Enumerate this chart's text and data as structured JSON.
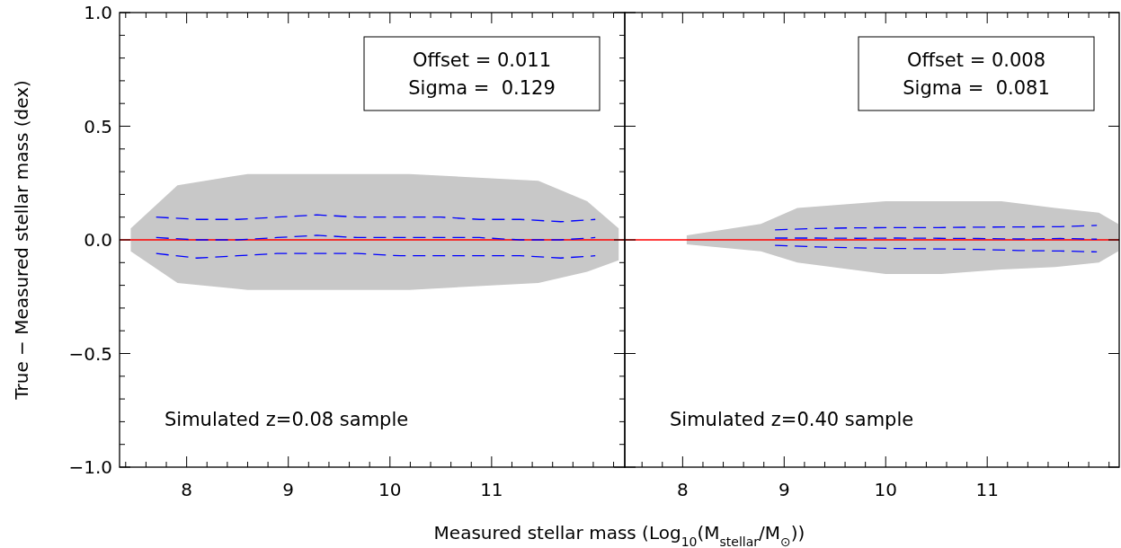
{
  "chart_data": [
    {
      "type": "line",
      "xlabel": "Measured stellar mass (Log$_{10}$(M$_{stellar}$/M$_{⊙}$))",
      "ylabel": "True − Measured stellar mass (dex)",
      "xlim": [
        7.34,
        12.31
      ],
      "ylim": [
        -1.0,
        1.0
      ],
      "xticks": [
        {
          "value": 7.4,
          "label": null
        },
        {
          "value": 7.6,
          "label": null
        },
        {
          "value": 7.8,
          "label": null
        },
        8,
        {
          "value": 8.2,
          "label": null
        },
        {
          "value": 8.4,
          "label": null
        },
        {
          "value": 8.6,
          "label": null
        },
        {
          "value": 8.8,
          "label": null
        },
        9,
        {
          "value": 9.2,
          "label": null
        },
        {
          "value": 9.4,
          "label": null
        },
        {
          "value": 9.6,
          "label": null
        },
        {
          "value": 9.8,
          "label": null
        },
        10,
        {
          "value": 10.2,
          "label": null
        },
        {
          "value": 10.4,
          "label": null
        },
        {
          "value": 10.6,
          "label": null
        },
        {
          "value": 10.8,
          "label": null
        },
        11,
        {
          "value": 11.2,
          "label": null
        },
        {
          "value": 11.4,
          "label": null
        },
        {
          "value": 11.6,
          "label": null
        },
        {
          "value": 11.8,
          "label": null
        },
        {
          "value": 12.0,
          "label": null
        },
        {
          "value": 12.2,
          "label": null
        }
      ],
      "yticks": [
        {
          "value": -1.0,
          "label": "−1.0"
        },
        {
          "value": -0.9,
          "label": null
        },
        {
          "value": -0.8,
          "label": null
        },
        {
          "value": -0.7,
          "label": null
        },
        {
          "value": -0.6,
          "label": null
        },
        {
          "value": -0.5,
          "label": "−0.5"
        },
        {
          "value": -0.4,
          "label": null
        },
        {
          "value": -0.3,
          "label": null
        },
        {
          "value": -0.2,
          "label": null
        },
        {
          "value": -0.1,
          "label": null
        },
        {
          "value": 0,
          "label": "0.0"
        },
        {
          "value": 0.1,
          "label": null
        },
        {
          "value": 0.2,
          "label": null
        },
        {
          "value": 0.3,
          "label": null
        },
        {
          "value": 0.4,
          "label": null
        },
        {
          "value": 0.5,
          "label": "0.5"
        },
        {
          "value": 0.6,
          "label": null
        },
        {
          "value": 0.7,
          "label": null
        },
        {
          "value": 0.8,
          "label": null
        },
        {
          "value": 0.9,
          "label": null
        },
        {
          "value": 1.0,
          "label": "1.0"
        }
      ],
      "line_style": "dashed",
      "marker": "none",
      "grid": false,
      "ref_lines": [
        {
          "axis": "y",
          "value": 0,
          "color": "#ff0000",
          "line_style": "solid"
        }
      ],
      "annotations": [
        "Offset = 0.011",
        "Sigma =  0.129",
        "Simulated z=0.08 sample"
      ],
      "series": [
        {
          "color": "#c8c8c8",
          "x": [
            7.45,
            7.91,
            8.6,
            10.19,
            11.46,
            11.94,
            12.25
          ],
          "values": [
            null,
            null,
            null,
            null,
            null,
            null,
            null
          ],
          "lower": [
            -0.05,
            -0.19,
            -0.22,
            -0.22,
            -0.19,
            -0.14,
            -0.09
          ],
          "upper": [
            0.05,
            0.24,
            0.29,
            0.29,
            0.26,
            0.17,
            0.05
          ]
        },
        {
          "color": "#0000ff",
          "x": [
            7.7,
            8.1,
            8.5,
            8.89,
            9.28,
            9.68,
            10.1,
            10.5,
            10.88,
            11.28,
            11.68,
            12.02
          ],
          "values": [
            0.1,
            0.09,
            0.09,
            0.1,
            0.11,
            0.1,
            0.1,
            0.1,
            0.09,
            0.09,
            0.08,
            0.09
          ]
        },
        {
          "color": "#0000ff",
          "x": [
            7.7,
            8.1,
            8.5,
            8.89,
            9.28,
            9.68,
            10.1,
            10.5,
            10.88,
            11.28,
            11.68,
            12.02
          ],
          "values": [
            0.01,
            0.0,
            0.0,
            0.01,
            0.02,
            0.01,
            0.01,
            0.01,
            0.01,
            0.0,
            0.0,
            0.01
          ]
        },
        {
          "color": "#0000ff",
          "x": [
            7.7,
            8.1,
            8.5,
            8.89,
            9.28,
            9.68,
            10.1,
            10.5,
            10.88,
            11.28,
            11.68,
            12.02
          ],
          "values": [
            -0.06,
            -0.08,
            -0.07,
            -0.06,
            -0.06,
            -0.06,
            -0.07,
            -0.07,
            -0.07,
            -0.07,
            -0.08,
            -0.07
          ]
        }
      ]
    },
    {
      "type": "line",
      "tick_labels": "x",
      "xlim": [
        7.43,
        12.3
      ],
      "ylim": [
        -1.0,
        1.0
      ],
      "xticks": [
        {
          "value": 7.6,
          "label": null
        },
        {
          "value": 7.8,
          "label": null
        },
        8,
        {
          "value": 8.2,
          "label": null
        },
        {
          "value": 8.4,
          "label": null
        },
        {
          "value": 8.6,
          "label": null
        },
        {
          "value": 8.8,
          "label": null
        },
        9,
        {
          "value": 9.2,
          "label": null
        },
        {
          "value": 9.4,
          "label": null
        },
        {
          "value": 9.6,
          "label": null
        },
        {
          "value": 9.8,
          "label": null
        },
        10,
        {
          "value": 10.2,
          "label": null
        },
        {
          "value": 10.4,
          "label": null
        },
        {
          "value": 10.6,
          "label": null
        },
        {
          "value": 10.8,
          "label": null
        },
        11,
        {
          "value": 11.2,
          "label": null
        },
        {
          "value": 11.4,
          "label": null
        },
        {
          "value": 11.6,
          "label": null
        },
        {
          "value": 11.8,
          "label": null
        },
        {
          "value": 12.0,
          "label": null
        },
        {
          "value": 12.2,
          "label": null
        }
      ],
      "yticks": [
        {
          "value": -1.0,
          "label": null
        },
        {
          "value": -0.5,
          "label": null
        },
        {
          "value": 0,
          "label": null
        },
        {
          "value": 0.5,
          "label": null
        },
        {
          "value": 1.0,
          "label": null
        }
      ],
      "line_style": "dashed",
      "marker": "none",
      "grid": false,
      "ref_lines": [
        {
          "axis": "y",
          "value": 0,
          "color": "#ff0000",
          "line_style": "solid"
        }
      ],
      "annotations": [
        "Offset = 0.008",
        "Sigma =  0.081",
        "Simulated z=0.40 sample"
      ],
      "series": [
        {
          "color": "#c8c8c8",
          "x": [
            8.04,
            8.77,
            9.13,
            10.0,
            10.55,
            11.14,
            11.67,
            12.1,
            12.29
          ],
          "values": [
            null,
            null,
            null,
            null,
            null,
            null,
            null,
            null,
            null
          ],
          "lower": [
            -0.02,
            -0.05,
            -0.1,
            -0.15,
            -0.15,
            -0.13,
            -0.12,
            -0.1,
            -0.05
          ],
          "upper": [
            0.02,
            0.07,
            0.14,
            0.17,
            0.17,
            0.17,
            0.14,
            0.12,
            0.07
          ]
        },
        {
          "color": "#0000ff",
          "x": [
            8.91,
            9.32,
            9.71,
            10.12,
            10.52,
            10.91,
            11.31,
            11.72,
            12.08
          ],
          "values": [
            0.044,
            0.05,
            0.053,
            0.054,
            0.054,
            0.056,
            0.057,
            0.058,
            0.064
          ]
        },
        {
          "color": "#0000ff",
          "x": [
            8.91,
            9.32,
            9.71,
            10.12,
            10.52,
            10.91,
            11.31,
            11.72,
            12.08
          ],
          "values": [
            0.008,
            0.008,
            0.007,
            0.008,
            0.007,
            0.006,
            0.004,
            0.006,
            0.003
          ]
        },
        {
          "color": "#0000ff",
          "x": [
            8.91,
            9.32,
            9.71,
            10.12,
            10.52,
            10.91,
            11.31,
            11.72,
            12.08
          ],
          "values": [
            -0.024,
            -0.031,
            -0.035,
            -0.038,
            -0.04,
            -0.042,
            -0.047,
            -0.049,
            -0.053
          ]
        }
      ]
    }
  ]
}
